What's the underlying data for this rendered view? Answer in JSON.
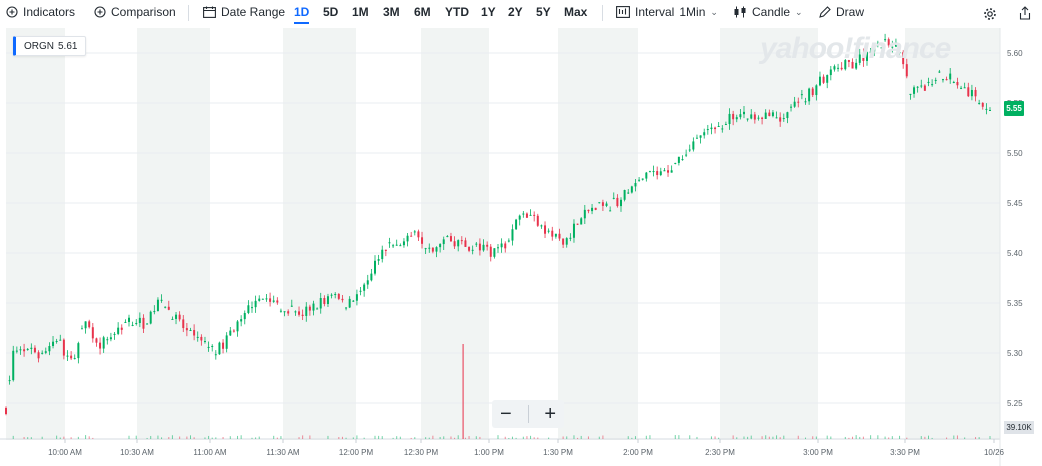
{
  "toolbar": {
    "indicators": "Indicators",
    "comparison": "Comparison",
    "date_range": "Date Range",
    "ranges": [
      "1D",
      "5D",
      "1M",
      "3M",
      "6M",
      "YTD",
      "1Y",
      "2Y",
      "5Y",
      "Max"
    ],
    "active_range": "1D",
    "interval_label": "Interval",
    "interval_value": "1Min",
    "chart_type": "Candle",
    "draw": "Draw"
  },
  "ticker": {
    "symbol": "ORGN",
    "price": "5.61"
  },
  "current_price_label": "5.55",
  "volume_label": "39.10K",
  "watermark": "yahoo!finance",
  "colors": {
    "up": "#00b061",
    "down": "#e8334c",
    "accent": "#0f69ff",
    "band": "#f1f4f3"
  },
  "chart_data": {
    "type": "candlestick",
    "x_ticks": [
      "10:00 AM",
      "10:30 AM",
      "11:00 AM",
      "11:30 AM",
      "12:00 PM",
      "12:30 PM",
      "1:00 PM",
      "1:30 PM",
      "2:00 PM",
      "2:30 PM",
      "3:00 PM",
      "3:30 PM",
      "10/26"
    ],
    "y_ticks": [
      "5.25",
      "5.30",
      "5.35",
      "5.40",
      "5.45",
      "5.50",
      "5.55",
      "5.60"
    ],
    "ylim": [
      5.215,
      5.625
    ],
    "grid": true,
    "close_path": [
      [
        0,
        5.245
      ],
      [
        2,
        5.3
      ],
      [
        10,
        5.3
      ],
      [
        14,
        5.315
      ],
      [
        18,
        5.29
      ],
      [
        22,
        5.33
      ],
      [
        26,
        5.31
      ],
      [
        30,
        5.32
      ],
      [
        34,
        5.335
      ],
      [
        38,
        5.33
      ],
      [
        42,
        5.35
      ],
      [
        46,
        5.34
      ],
      [
        50,
        5.32
      ],
      [
        54,
        5.31
      ],
      [
        58,
        5.3
      ],
      [
        62,
        5.32
      ],
      [
        66,
        5.34
      ],
      [
        70,
        5.36
      ],
      [
        74,
        5.35
      ],
      [
        78,
        5.345
      ],
      [
        82,
        5.34
      ],
      [
        86,
        5.35
      ],
      [
        90,
        5.355
      ],
      [
        94,
        5.35
      ],
      [
        98,
        5.36
      ],
      [
        102,
        5.39
      ],
      [
        106,
        5.405
      ],
      [
        110,
        5.41
      ],
      [
        114,
        5.42
      ],
      [
        118,
        5.4
      ],
      [
        122,
        5.415
      ],
      [
        126,
        5.41
      ],
      [
        130,
        5.405
      ],
      [
        134,
        5.4
      ],
      [
        138,
        5.41
      ],
      [
        142,
        5.44
      ],
      [
        146,
        5.435
      ],
      [
        150,
        5.42
      ],
      [
        154,
        5.41
      ],
      [
        158,
        5.43
      ],
      [
        162,
        5.445
      ],
      [
        166,
        5.445
      ],
      [
        170,
        5.455
      ],
      [
        174,
        5.465
      ],
      [
        178,
        5.48
      ],
      [
        182,
        5.48
      ],
      [
        186,
        5.495
      ],
      [
        190,
        5.51
      ],
      [
        194,
        5.52
      ],
      [
        198,
        5.53
      ],
      [
        202,
        5.54
      ],
      [
        206,
        5.535
      ],
      [
        210,
        5.54
      ],
      [
        214,
        5.53
      ],
      [
        218,
        5.55
      ],
      [
        222,
        5.56
      ],
      [
        226,
        5.575
      ],
      [
        230,
        5.585
      ],
      [
        234,
        5.59
      ],
      [
        238,
        5.6
      ],
      [
        242,
        5.61
      ],
      [
        246,
        5.61
      ],
      [
        250,
        5.56
      ],
      [
        254,
        5.565
      ],
      [
        258,
        5.58
      ],
      [
        262,
        5.575
      ],
      [
        266,
        5.56
      ],
      [
        270,
        5.55
      ],
      [
        272,
        5.545
      ]
    ],
    "volume_spike": {
      "time": "12:55 PM",
      "value": "39.10K"
    }
  }
}
